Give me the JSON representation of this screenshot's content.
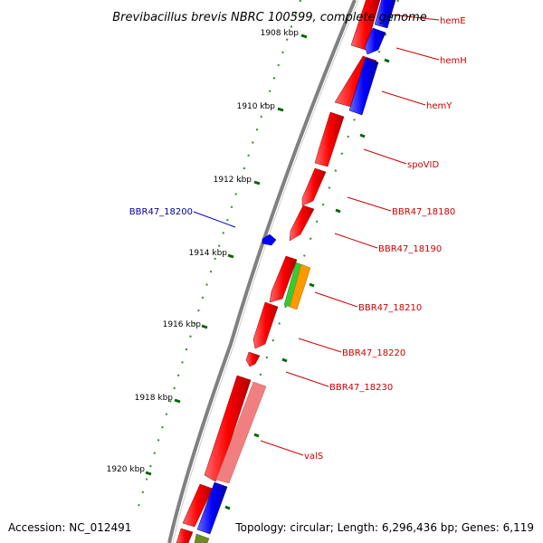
{
  "title": "Brevibacillus brevis NBRC 100599, complete genome",
  "footer": {
    "accession": "Accession: NC_012491",
    "summary": "Topology: circular; Length: 6,296,436 bp; Genes: 6,119"
  },
  "ruler_labels": [
    "1908 kbp",
    "1910 kbp",
    "1912 kbp",
    "1914 kbp",
    "1916 kbp",
    "1918 kbp",
    "1920 kbp"
  ],
  "gene_labels": [
    {
      "text": "hemE",
      "strand": "right"
    },
    {
      "text": "hemH",
      "strand": "right"
    },
    {
      "text": "hemY",
      "strand": "right"
    },
    {
      "text": "spoVID",
      "strand": "right"
    },
    {
      "text": "BBR47_18180",
      "strand": "right"
    },
    {
      "text": "BBR47_18190",
      "strand": "right"
    },
    {
      "text": "BBR47_18200",
      "strand": "left"
    },
    {
      "text": "BBR47_18210",
      "strand": "right"
    },
    {
      "text": "BBR47_18220",
      "strand": "right"
    },
    {
      "text": "BBR47_18230",
      "strand": "right"
    },
    {
      "text": "valS",
      "strand": "right"
    }
  ],
  "colors": {
    "gene_red": "#ff0000",
    "gene_blue": "#0000ff",
    "gene_green": "#33cc33",
    "gene_orange": "#ff9900",
    "gene_pink": "#f08080",
    "label_red": "#cc0000",
    "label_blue": "#000099",
    "tick_green": "#006600",
    "backbone": "#808080"
  }
}
